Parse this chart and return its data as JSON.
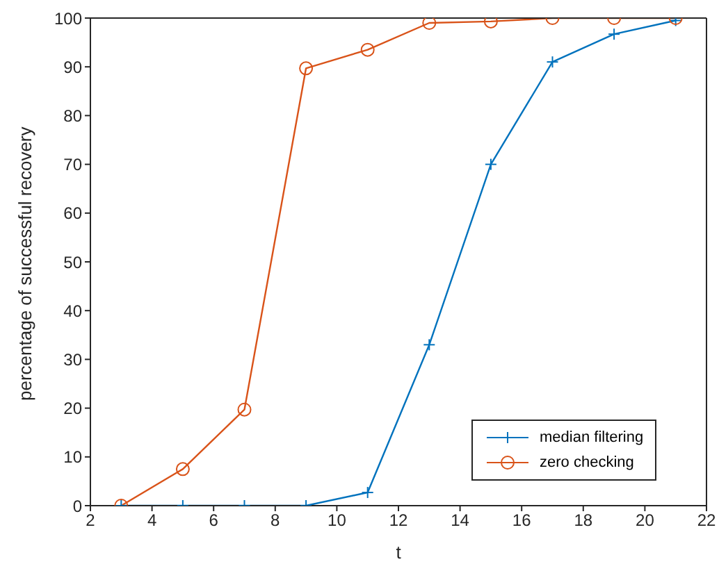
{
  "chart_data": {
    "type": "line",
    "xlabel": "t",
    "ylabel": "percentage of successful recovery",
    "x": [
      3,
      5,
      7,
      9,
      11,
      13,
      15,
      17,
      19,
      21
    ],
    "series": [
      {
        "name": "median filtering",
        "color": "#0072bd",
        "marker": "cross",
        "values": [
          0,
          0,
          0,
          0,
          2.7,
          33,
          70,
          91,
          96.7,
          99.5
        ]
      },
      {
        "name": "zero checking",
        "color": "#d95319",
        "marker": "circle",
        "values": [
          0,
          7.5,
          19.7,
          89.7,
          93.5,
          99,
          99.3,
          100,
          100,
          100
        ]
      }
    ],
    "xlim": [
      2,
      22
    ],
    "xticks": [
      2,
      4,
      6,
      8,
      10,
      12,
      14,
      16,
      18,
      20,
      22
    ],
    "ylim": [
      0,
      100
    ],
    "yticks": [
      0,
      10,
      20,
      30,
      40,
      50,
      60,
      70,
      80,
      90,
      100
    ],
    "grid": false,
    "legend": "bottom right",
    "line_style": "solid"
  }
}
